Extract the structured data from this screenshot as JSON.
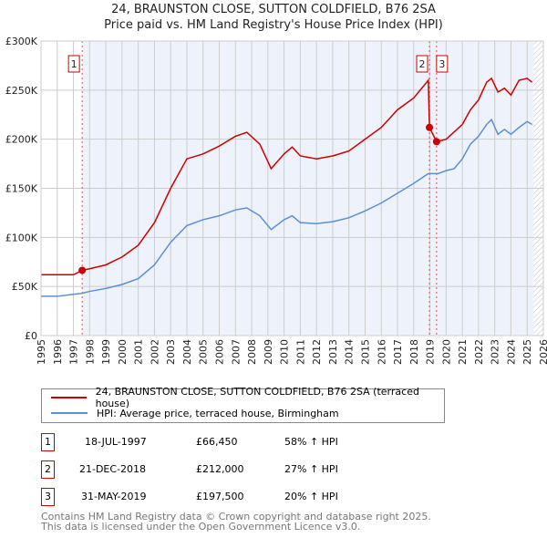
{
  "title": "24, BRAUNSTON CLOSE, SUTTON COLDFIELD, B76 2SA",
  "subtitle": "Price paid vs. HM Land Registry's House Price Index (HPI)",
  "chart_data": {
    "type": "line",
    "title": "24, BRAUNSTON CLOSE, SUTTON COLDFIELD, B76 2SA",
    "xlim": [
      1995,
      2026
    ],
    "ylim": [
      0,
      300000
    ],
    "x_ticks": [
      "1995",
      "1996",
      "1997",
      "1998",
      "1999",
      "2000",
      "2001",
      "2002",
      "2003",
      "2004",
      "2005",
      "2006",
      "2007",
      "2008",
      "2009",
      "2010",
      "2011",
      "2012",
      "2013",
      "2014",
      "2015",
      "2016",
      "2017",
      "2018",
      "2019",
      "2020",
      "2021",
      "2022",
      "2023",
      "2024",
      "2025",
      "2026"
    ],
    "y_ticks": [
      {
        "v": 0,
        "label": "£0"
      },
      {
        "v": 50000,
        "label": "£50K"
      },
      {
        "v": 100000,
        "label": "£100K"
      },
      {
        "v": 150000,
        "label": "£150K"
      },
      {
        "v": 200000,
        "label": "£200K"
      },
      {
        "v": 250000,
        "label": "£250K"
      },
      {
        "v": 300000,
        "label": "£300K"
      }
    ],
    "grid": true,
    "series": [
      {
        "name": "24, BRAUNSTON CLOSE, SUTTON COLDFIELD, B76 2SA (terraced house)",
        "color": "#cc0000",
        "x": [
          1995,
          1996,
          1997,
          1997.54,
          1998,
          1999,
          2000,
          2001,
          2002,
          2003,
          2004,
          2005,
          2006,
          2007,
          2007.7,
          2008.5,
          2009.2,
          2010,
          2010.5,
          2011,
          2012,
          2013,
          2014,
          2015,
          2016,
          2017,
          2018,
          2018.9,
          2018.97,
          2019.41,
          2020,
          2021,
          2021.5,
          2022,
          2022.5,
          2022.8,
          2023.2,
          2023.6,
          2024,
          2024.5,
          2025,
          2025.3
        ],
        "y": [
          62000,
          62000,
          62000,
          66450,
          68000,
          72000,
          80000,
          92000,
          115000,
          150000,
          180000,
          185000,
          193000,
          203000,
          207000,
          195000,
          170000,
          185000,
          192000,
          183000,
          180000,
          183000,
          188000,
          200000,
          212000,
          230000,
          242000,
          260000,
          212000,
          197500,
          200000,
          215000,
          230000,
          240000,
          258000,
          262000,
          248000,
          252000,
          245000,
          260000,
          262000,
          258000
        ]
      },
      {
        "name": "HPI: Average price, terraced house, Birmingham",
        "color": "#5b8fd4",
        "x": [
          1995,
          1996,
          1997,
          1997.5,
          1998,
          1999,
          2000,
          2001,
          2002,
          2003,
          2004,
          2005,
          2006,
          2007,
          2007.7,
          2008.5,
          2009.2,
          2010,
          2010.5,
          2011,
          2012,
          2013,
          2014,
          2015,
          2016,
          2017,
          2018,
          2018.9,
          2019.5,
          2020,
          2020.5,
          2021,
          2021.5,
          2022,
          2022.5,
          2022.8,
          2023.2,
          2023.6,
          2024,
          2024.5,
          2025,
          2025.3
        ],
        "y": [
          40000,
          40000,
          42000,
          43000,
          45000,
          48000,
          52000,
          58000,
          72000,
          95000,
          112000,
          118000,
          122000,
          128000,
          130000,
          122000,
          108000,
          118000,
          122000,
          115000,
          114000,
          116000,
          120000,
          127000,
          135000,
          145000,
          155000,
          165000,
          165000,
          168000,
          170000,
          180000,
          195000,
          203000,
          215000,
          220000,
          205000,
          210000,
          205000,
          212000,
          218000,
          215000
        ]
      }
    ],
    "sales": [
      {
        "id": "1",
        "x": 1997.54,
        "y": 66450
      },
      {
        "id": "2",
        "x": 2018.97,
        "y": 212000
      },
      {
        "id": "3",
        "x": 2019.41,
        "y": 197500
      }
    ],
    "shaded_range": [
      1997.54,
      2025.4
    ],
    "hatched_from": 2025.4
  },
  "legend": [
    {
      "label": "24, BRAUNSTON CLOSE, SUTTON COLDFIELD, B76 2SA (terraced house)",
      "color": "#cc0000"
    },
    {
      "label": "HPI: Average price, terraced house, Birmingham",
      "color": "#5b8fd4"
    }
  ],
  "table": [
    {
      "num": "1",
      "date": "18-JUL-1997",
      "price": "£66,450",
      "hpi": "58% ↑ HPI"
    },
    {
      "num": "2",
      "date": "21-DEC-2018",
      "price": "£212,000",
      "hpi": "27% ↑ HPI"
    },
    {
      "num": "3",
      "date": "31-MAY-2019",
      "price": "£197,500",
      "hpi": "20% ↑ HPI"
    }
  ],
  "footer": [
    "Contains HM Land Registry data © Crown copyright and database right 2025.",
    "This data is licensed under the Open Government Licence v3.0."
  ]
}
